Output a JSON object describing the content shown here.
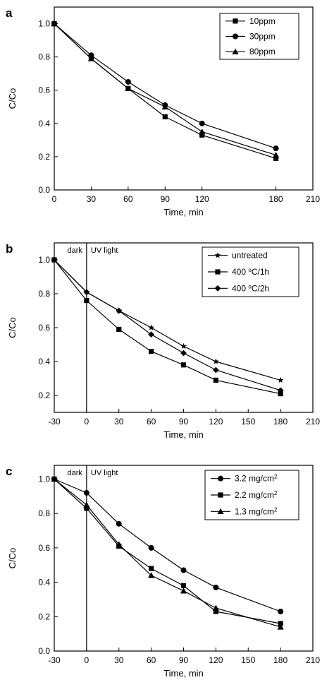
{
  "chart_data": [
    {
      "type": "line",
      "panel": "a",
      "xlabel": "Time, min",
      "ylabel": "C/Co",
      "xlim": [
        0,
        210
      ],
      "ylim": [
        0.0,
        1.1
      ],
      "xticks": [
        0,
        30,
        60,
        90,
        120,
        180,
        210
      ],
      "yticks": [
        0.0,
        0.2,
        0.4,
        0.6,
        0.8,
        1.0
      ],
      "grid": false,
      "legend_position": "top-right",
      "series": [
        {
          "name": "10ppm",
          "marker": "square",
          "x": [
            0,
            30,
            60,
            90,
            120,
            180
          ],
          "y": [
            1.0,
            0.79,
            0.61,
            0.44,
            0.33,
            0.19
          ]
        },
        {
          "name": "30ppm",
          "marker": "circle",
          "x": [
            0,
            30,
            60,
            90,
            120,
            180
          ],
          "y": [
            1.0,
            0.81,
            0.65,
            0.51,
            0.4,
            0.25
          ]
        },
        {
          "name": "80ppm",
          "marker": "triangle",
          "x": [
            0,
            30,
            60,
            90,
            120,
            180
          ],
          "y": [
            1.0,
            0.79,
            0.61,
            0.5,
            0.35,
            0.21
          ]
        }
      ]
    },
    {
      "type": "line",
      "panel": "b",
      "xlabel": "Time, min",
      "ylabel": "C/Co",
      "xlim": [
        -30,
        210
      ],
      "ylim": [
        0.1,
        1.1
      ],
      "xticks": [
        -30,
        0,
        30,
        60,
        90,
        120,
        150,
        180,
        210
      ],
      "yticks": [
        0.2,
        0.4,
        0.6,
        0.8,
        1.0
      ],
      "grid": false,
      "legend_position": "top-right",
      "phase_line_x": 0,
      "phase_labels": [
        "dark",
        "UV light"
      ],
      "series": [
        {
          "name": "untreated",
          "legend_parts": [
            "untreated"
          ],
          "marker": "star",
          "x": [
            -30,
            0,
            30,
            60,
            90,
            120,
            180
          ],
          "y": [
            1.0,
            0.81,
            0.7,
            0.6,
            0.49,
            0.4,
            0.29
          ]
        },
        {
          "name": "400 °C/1h",
          "legend_parts": [
            "400 ",
            "o",
            "C/1h"
          ],
          "marker": "square",
          "x": [
            -30,
            0,
            30,
            60,
            90,
            120,
            180
          ],
          "y": [
            1.0,
            0.76,
            0.59,
            0.46,
            0.38,
            0.29,
            0.21
          ]
        },
        {
          "name": "400 °C/2h",
          "legend_parts": [
            "400 ",
            "o",
            "C/2h"
          ],
          "marker": "diamond",
          "x": [
            -30,
            0,
            30,
            60,
            90,
            120,
            180
          ],
          "y": [
            1.0,
            0.81,
            0.7,
            0.56,
            0.45,
            0.35,
            0.23
          ]
        }
      ]
    },
    {
      "type": "line",
      "panel": "c",
      "xlabel": "Time, min",
      "ylabel": "C/Co",
      "xlim": [
        -30,
        210
      ],
      "ylim": [
        0.0,
        1.08
      ],
      "xticks": [
        -30,
        0,
        30,
        60,
        90,
        120,
        150,
        180,
        210
      ],
      "yticks": [
        0.0,
        0.2,
        0.4,
        0.6,
        0.8,
        1.0
      ],
      "grid": false,
      "legend_position": "top-right",
      "phase_line_x": 0,
      "phase_labels": [
        "dark",
        "UV light"
      ],
      "series": [
        {
          "name": "3.2 mg/cm2",
          "legend_parts": [
            "3.2 mg/cm",
            "2"
          ],
          "marker": "circle",
          "x": [
            -30,
            0,
            30,
            60,
            90,
            120,
            180
          ],
          "y": [
            1.0,
            0.92,
            0.74,
            0.6,
            0.47,
            0.37,
            0.23
          ]
        },
        {
          "name": "2.2 mg/cm2",
          "legend_parts": [
            "2.2 mg/cm",
            "2"
          ],
          "marker": "square",
          "x": [
            -30,
            0,
            30,
            60,
            90,
            120,
            180
          ],
          "y": [
            1.0,
            0.83,
            0.61,
            0.48,
            0.38,
            0.23,
            0.16
          ]
        },
        {
          "name": "1.3 mg/cm2",
          "legend_parts": [
            "1.3 mg/cm",
            "2"
          ],
          "marker": "triangle",
          "x": [
            -30,
            0,
            30,
            60,
            90,
            120,
            180
          ],
          "y": [
            1.0,
            0.85,
            0.62,
            0.44,
            0.35,
            0.25,
            0.14
          ]
        }
      ]
    }
  ]
}
